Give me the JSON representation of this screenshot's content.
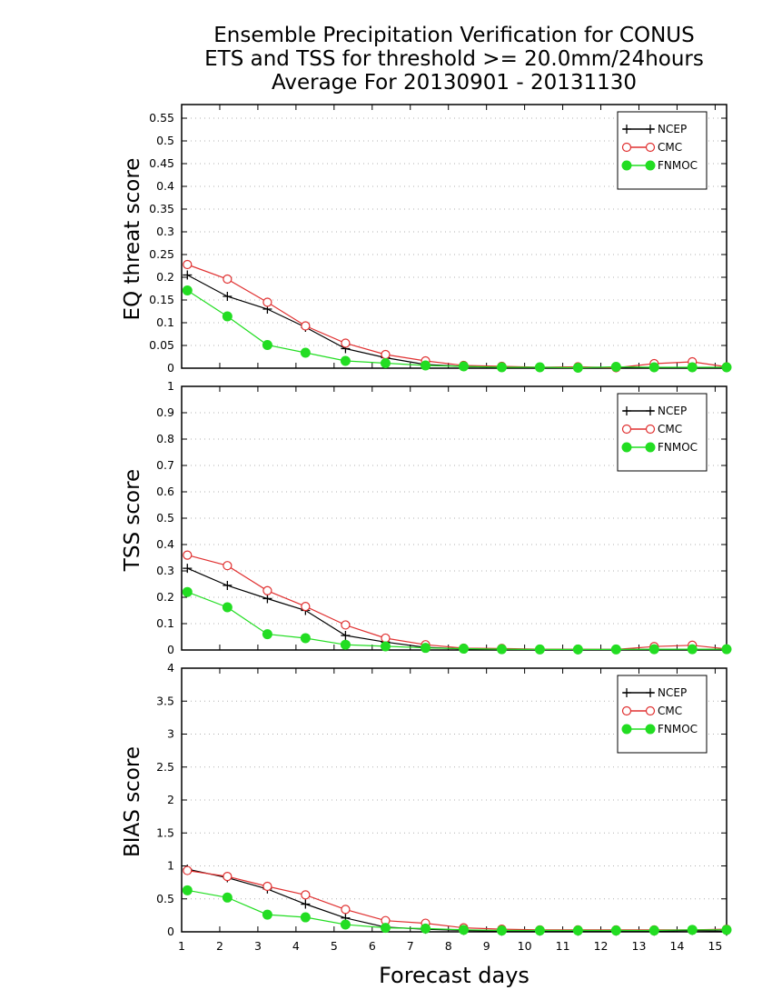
{
  "title": {
    "line1": "Ensemble Precipitation Verification for CONUS",
    "line2": "ETS and TSS for threshold >= 20.0mm/24hours",
    "line3": "Average For 20130901 - 20131130"
  },
  "xlabel": "Forecast days",
  "legend": [
    "NCEP",
    "CMC",
    "FNMOC"
  ],
  "colors": {
    "NCEP": "#000000",
    "CMC": "#e03030",
    "FNMOC": "#22dd22",
    "grid": "#b0b0b0"
  },
  "chart_data": [
    {
      "type": "line",
      "ylabel": "EQ threat score",
      "xlim": [
        1,
        15.3
      ],
      "ylim": [
        0,
        0.58
      ],
      "yticks": [
        "0",
        "0.05",
        "0.1",
        "0.15",
        "0.2",
        "0.25",
        "0.3",
        "0.35",
        "0.4",
        "0.45",
        "0.5",
        "0.55"
      ],
      "grid": true,
      "legend_position": "top-right",
      "x": [
        1.15,
        2.2,
        3.25,
        4.25,
        5.3,
        6.35,
        7.4,
        8.4,
        9.4,
        10.4,
        11.4,
        12.4,
        13.4,
        14.4,
        15.3
      ],
      "series": [
        {
          "name": "NCEP",
          "values": [
            0.205,
            0.158,
            0.13,
            0.09,
            0.043,
            0.023,
            0.008,
            0.004,
            0.002,
            0.001,
            0.001,
            0.002,
            0.001,
            0.001,
            0.001
          ]
        },
        {
          "name": "CMC",
          "values": [
            0.228,
            0.196,
            0.145,
            0.093,
            0.055,
            0.03,
            0.016,
            0.006,
            0.004,
            0.002,
            0.003,
            0.001,
            0.01,
            0.014,
            0.003
          ]
        },
        {
          "name": "FNMOC",
          "values": [
            0.171,
            0.114,
            0.051,
            0.034,
            0.016,
            0.011,
            0.006,
            0.004,
            0.002,
            0.002,
            0.001,
            0.003,
            0.002,
            0.002,
            0.002
          ]
        }
      ]
    },
    {
      "type": "line",
      "ylabel": "TSS score",
      "xlim": [
        1,
        15.3
      ],
      "ylim": [
        0,
        1
      ],
      "yticks": [
        "0",
        "0.1",
        "0.2",
        "0.3",
        "0.4",
        "0.5",
        "0.6",
        "0.7",
        "0.8",
        "0.9",
        "1"
      ],
      "grid": true,
      "legend_position": "top-right",
      "x": [
        1.15,
        2.2,
        3.25,
        4.25,
        5.3,
        6.35,
        7.4,
        8.4,
        9.4,
        10.4,
        11.4,
        12.4,
        13.4,
        14.4,
        15.3
      ],
      "series": [
        {
          "name": "NCEP",
          "values": [
            0.31,
            0.245,
            0.195,
            0.15,
            0.055,
            0.03,
            0.01,
            0.004,
            0.003,
            0.002,
            0.001,
            0.002,
            0.002,
            0.002,
            0.002
          ]
        },
        {
          "name": "CMC",
          "values": [
            0.36,
            0.32,
            0.225,
            0.165,
            0.095,
            0.045,
            0.02,
            0.007,
            0.006,
            0.003,
            0.003,
            0.002,
            0.013,
            0.018,
            0.004
          ]
        },
        {
          "name": "FNMOC",
          "values": [
            0.22,
            0.162,
            0.06,
            0.045,
            0.02,
            0.014,
            0.008,
            0.005,
            0.003,
            0.002,
            0.002,
            0.002,
            0.003,
            0.003,
            0.003
          ]
        }
      ]
    },
    {
      "type": "line",
      "ylabel": "BIAS score",
      "xlim": [
        1,
        15.3
      ],
      "ylim": [
        0,
        4
      ],
      "yticks": [
        "0",
        "0.5",
        "1",
        "1.5",
        "2",
        "2.5",
        "3",
        "3.5",
        "4"
      ],
      "grid": true,
      "legend_position": "top-right",
      "x": [
        1.15,
        2.2,
        3.25,
        4.25,
        5.3,
        6.35,
        7.4,
        8.4,
        9.4,
        10.4,
        11.4,
        12.4,
        13.4,
        14.4,
        15.3
      ],
      "series": [
        {
          "name": "NCEP",
          "values": [
            0.95,
            0.82,
            0.65,
            0.42,
            0.21,
            0.07,
            0.04,
            0.02,
            0.01,
            0.01,
            0.01,
            0.01,
            0.01,
            0.02,
            0.01
          ]
        },
        {
          "name": "CMC",
          "values": [
            0.93,
            0.84,
            0.69,
            0.56,
            0.34,
            0.17,
            0.13,
            0.06,
            0.04,
            0.03,
            0.03,
            0.03,
            0.03,
            0.03,
            0.04
          ]
        },
        {
          "name": "FNMOC",
          "values": [
            0.63,
            0.52,
            0.26,
            0.22,
            0.11,
            0.06,
            0.05,
            0.03,
            0.02,
            0.02,
            0.02,
            0.02,
            0.02,
            0.03,
            0.03
          ]
        }
      ]
    }
  ],
  "xticks": [
    "1",
    "2",
    "3",
    "4",
    "5",
    "6",
    "7",
    "8",
    "9",
    "10",
    "11",
    "12",
    "13",
    "14",
    "15"
  ]
}
